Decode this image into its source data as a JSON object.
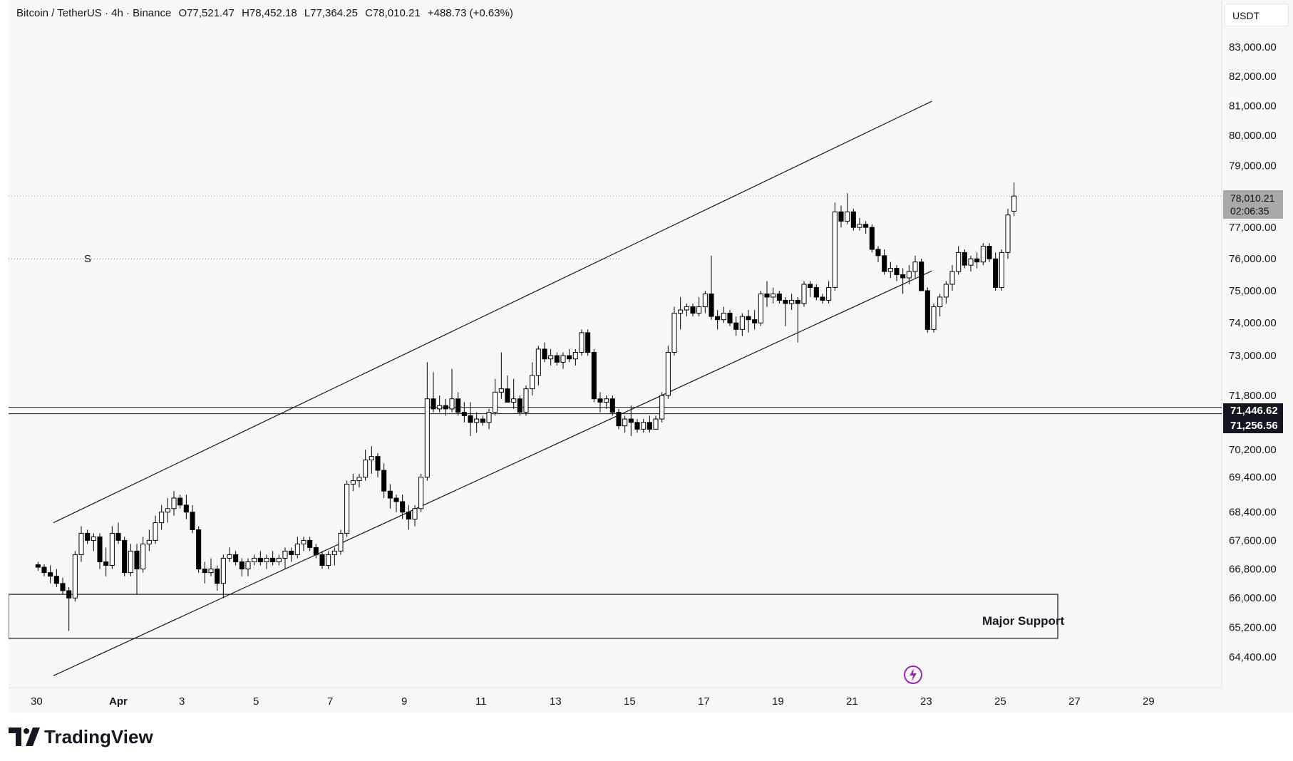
{
  "legend": {
    "symbol": "Bitcoin / TetherUS · 4h · Binance",
    "open": "O77,521.47",
    "high": "H78,452.18",
    "low": "L77,364.25",
    "close": "C78,010.21",
    "change": "+488.73 (+0.63%)"
  },
  "unit": "USDT",
  "price_tag": {
    "price": "78,010.21",
    "countdown": "02:06:35"
  },
  "level_tags": [
    "71,446.62",
    "71,256.56"
  ],
  "marker_label": "S",
  "support_label": "Major Support",
  "brand": "TradingView",
  "colors": {
    "up": "#ffffff",
    "down": "#000000",
    "line": "#131722",
    "bg": "#f7f7f7",
    "tag": "#a9a9a9",
    "accent": "#9c27b0"
  },
  "chart_data": {
    "type": "candlestick",
    "x_tick_labels": [
      "30",
      "Apr",
      "3",
      "5",
      "7",
      "9",
      "11",
      "13",
      "15",
      "17",
      "19",
      "21",
      "23",
      "25",
      "27",
      "29"
    ],
    "y_tick_labels": [
      {
        "value": 83000,
        "label": "83,000.00"
      },
      {
        "value": 82000,
        "label": "82,000.00"
      },
      {
        "value": 81000,
        "label": "81,000.00"
      },
      {
        "value": 80000,
        "label": "80,000.00"
      },
      {
        "value": 79000,
        "label": "79,000.00"
      },
      {
        "value": 77000,
        "label": "77,000.00"
      },
      {
        "value": 76000,
        "label": "76,000.00"
      },
      {
        "value": 75000,
        "label": "75,000.00"
      },
      {
        "value": 74000,
        "label": "74,000.00"
      },
      {
        "value": 73000,
        "label": "73,000.00"
      },
      {
        "value": 71800,
        "label": "71,800.00"
      },
      {
        "value": 70200,
        "label": "70,200.00"
      },
      {
        "value": 69400,
        "label": "69,400.00"
      },
      {
        "value": 68400,
        "label": "68,400.00"
      },
      {
        "value": 67600,
        "label": "67,600.00"
      },
      {
        "value": 66800,
        "label": "66,800.00"
      },
      {
        "value": 66000,
        "label": "66,000.00"
      },
      {
        "value": 65200,
        "label": "65,200.00"
      },
      {
        "value": 64400,
        "label": "64,400.00"
      }
    ],
    "channel_upper": [
      [
        0.5,
        68100
      ],
      [
        24.2,
        81150
      ]
    ],
    "channel_lower": [
      [
        0.5,
        63900
      ],
      [
        24.2,
        75620
      ]
    ],
    "horizontal_levels": [
      71446.62,
      71256.56
    ],
    "last_price": 78010.21,
    "marker_level": 76000,
    "support_zone": [
      64900,
      66100
    ],
    "candles": [
      [
        66920,
        67000,
        66750,
        66850
      ],
      [
        66850,
        66930,
        66600,
        66700
      ],
      [
        66700,
        66900,
        66400,
        66600
      ],
      [
        66600,
        66800,
        66300,
        66400
      ],
      [
        66400,
        66560,
        66100,
        66200
      ],
      [
        66200,
        66300,
        65100,
        66000
      ],
      [
        66000,
        67300,
        65900,
        67200
      ],
      [
        67200,
        68000,
        67000,
        67800
      ],
      [
        67800,
        67900,
        67500,
        67600
      ],
      [
        67600,
        67800,
        67300,
        67700
      ],
      [
        67700,
        67800,
        66800,
        67000
      ],
      [
        67000,
        67400,
        66600,
        66900
      ],
      [
        66900,
        68000,
        66800,
        67800
      ],
      [
        67800,
        68100,
        67500,
        67600
      ],
      [
        67600,
        67700,
        66600,
        66700
      ],
      [
        66700,
        67500,
        66600,
        67300
      ],
      [
        67300,
        67500,
        66100,
        66800
      ],
      [
        66800,
        67700,
        66700,
        67500
      ],
      [
        67500,
        67900,
        67300,
        67600
      ],
      [
        67600,
        68300,
        67500,
        68100
      ],
      [
        68100,
        68600,
        67900,
        68400
      ],
      [
        68400,
        68800,
        68100,
        68500
      ],
      [
        68500,
        69000,
        68300,
        68800
      ],
      [
        68800,
        68900,
        68500,
        68600
      ],
      [
        68600,
        68900,
        68200,
        68400
      ],
      [
        68400,
        68600,
        67800,
        67900
      ],
      [
        67900,
        68000,
        66700,
        66800
      ],
      [
        66800,
        67000,
        66400,
        66700
      ],
      [
        66700,
        67100,
        66600,
        66800
      ],
      [
        66800,
        66900,
        66200,
        66400
      ],
      [
        66400,
        67200,
        66000,
        67100
      ],
      [
        67100,
        67400,
        67000,
        67200
      ],
      [
        67200,
        67300,
        66900,
        67000
      ],
      [
        67000,
        67100,
        66600,
        66800
      ],
      [
        66800,
        67100,
        66600,
        67000
      ],
      [
        67000,
        67200,
        66900,
        67100
      ],
      [
        67100,
        67300,
        66900,
        67000
      ],
      [
        67000,
        67200,
        66800,
        67100
      ],
      [
        67100,
        67300,
        66900,
        67000
      ],
      [
        67000,
        67200,
        66900,
        67100
      ],
      [
        67100,
        67400,
        66800,
        67300
      ],
      [
        67300,
        67400,
        67000,
        67200
      ],
      [
        67200,
        67700,
        67100,
        67500
      ],
      [
        67500,
        67700,
        67300,
        67600
      ],
      [
        67600,
        67700,
        67300,
        67400
      ],
      [
        67400,
        67500,
        67100,
        67200
      ],
      [
        67200,
        67300,
        66800,
        66900
      ],
      [
        66900,
        67300,
        66800,
        67200
      ],
      [
        67200,
        67400,
        66900,
        67300
      ],
      [
        67300,
        67900,
        67200,
        67800
      ],
      [
        67800,
        69300,
        67700,
        69200
      ],
      [
        69200,
        69500,
        69000,
        69300
      ],
      [
        69300,
        69500,
        69100,
        69400
      ],
      [
        69400,
        70200,
        69300,
        69900
      ],
      [
        69900,
        70300,
        69500,
        70000
      ],
      [
        70000,
        70100,
        69400,
        69600
      ],
      [
        69600,
        69800,
        68800,
        69000
      ],
      [
        69000,
        69200,
        68500,
        68800
      ],
      [
        68800,
        68900,
        68400,
        68700
      ],
      [
        68700,
        68900,
        68200,
        68400
      ],
      [
        68400,
        68600,
        67900,
        68200
      ],
      [
        68200,
        68600,
        68000,
        68500
      ],
      [
        68500,
        69500,
        68400,
        69400
      ],
      [
        69400,
        72800,
        69300,
        71700
      ],
      [
        71700,
        72500,
        71300,
        71400
      ],
      [
        71400,
        71800,
        71300,
        71500
      ],
      [
        71500,
        71700,
        71200,
        71400
      ],
      [
        71400,
        72600,
        71300,
        71700
      ],
      [
        71700,
        71900,
        71200,
        71300
      ],
      [
        71300,
        71600,
        71000,
        71200
      ],
      [
        71200,
        71600,
        70600,
        71000
      ],
      [
        71000,
        71300,
        70700,
        71100
      ],
      [
        71100,
        71200,
        70900,
        71000
      ],
      [
        71000,
        71400,
        70800,
        71300
      ],
      [
        71300,
        72300,
        71200,
        71900
      ],
      [
        71900,
        73100,
        71700,
        72000
      ],
      [
        72000,
        72400,
        71700,
        71600
      ],
      [
        71600,
        72300,
        71400,
        71700
      ],
      [
        71700,
        71800,
        71200,
        71300
      ],
      [
        71300,
        72100,
        71200,
        72000
      ],
      [
        72000,
        72800,
        71800,
        72400
      ],
      [
        72400,
        73300,
        72100,
        73200
      ],
      [
        73200,
        73400,
        72800,
        72900
      ],
      [
        72900,
        73200,
        72700,
        73000
      ],
      [
        73000,
        73100,
        72700,
        72800
      ],
      [
        72800,
        73100,
        72600,
        73000
      ],
      [
        73000,
        73200,
        72800,
        72900
      ],
      [
        72900,
        73200,
        72700,
        73100
      ],
      [
        73100,
        73800,
        73000,
        73700
      ],
      [
        73700,
        73800,
        73000,
        73100
      ],
      [
        73100,
        73200,
        71600,
        71700
      ],
      [
        71700,
        71900,
        71300,
        71600
      ],
      [
        71600,
        71800,
        71400,
        71700
      ],
      [
        71700,
        71800,
        71200,
        71300
      ],
      [
        71300,
        71400,
        70800,
        70900
      ],
      [
        70900,
        71200,
        70700,
        71100
      ],
      [
        71100,
        71500,
        70600,
        71000
      ],
      [
        71000,
        71100,
        70700,
        70800
      ],
      [
        70800,
        71100,
        70700,
        71000
      ],
      [
        71000,
        71200,
        70700,
        70800
      ],
      [
        70800,
        71200,
        70800,
        71100
      ],
      [
        71100,
        71900,
        71000,
        71800
      ],
      [
        71800,
        73300,
        71700,
        73100
      ],
      [
        73100,
        74500,
        73000,
        74300
      ],
      [
        74300,
        74800,
        73800,
        74400
      ],
      [
        74400,
        74600,
        74200,
        74500
      ],
      [
        74500,
        74600,
        74200,
        74300
      ],
      [
        74300,
        74800,
        74200,
        74500
      ],
      [
        74500,
        75000,
        74300,
        74900
      ],
      [
        74900,
        76100,
        74100,
        74200
      ],
      [
        74200,
        74400,
        73800,
        74100
      ],
      [
        74100,
        74500,
        74000,
        74300
      ],
      [
        74300,
        74400,
        73900,
        74000
      ],
      [
        74000,
        74200,
        73600,
        73800
      ],
      [
        73800,
        74300,
        73600,
        74200
      ],
      [
        74200,
        74400,
        73700,
        74100
      ],
      [
        74100,
        74400,
        73800,
        74000
      ],
      [
        74000,
        75000,
        73900,
        74900
      ],
      [
        74900,
        75300,
        74500,
        74800
      ],
      [
        74800,
        75100,
        74600,
        74900
      ],
      [
        74900,
        75000,
        74600,
        74700
      ],
      [
        74700,
        74800,
        73900,
        74600
      ],
      [
        74600,
        74900,
        74400,
        74700
      ],
      [
        74700,
        74800,
        73400,
        74600
      ],
      [
        74600,
        75300,
        74500,
        75200
      ],
      [
        75200,
        75300,
        74800,
        75100
      ],
      [
        75100,
        75200,
        74700,
        74800
      ],
      [
        74800,
        74900,
        74600,
        74700
      ],
      [
        74700,
        75300,
        74600,
        75100
      ],
      [
        75100,
        77800,
        75000,
        77500
      ],
      [
        77500,
        77700,
        77000,
        77200
      ],
      [
        77200,
        78100,
        77100,
        77500
      ],
      [
        77500,
        77600,
        76900,
        77000
      ],
      [
        77000,
        77300,
        76900,
        77100
      ],
      [
        77100,
        77200,
        76800,
        77000
      ],
      [
        77000,
        77100,
        76200,
        76300
      ],
      [
        76300,
        76400,
        75900,
        76100
      ],
      [
        76100,
        76300,
        75500,
        75600
      ],
      [
        75600,
        75900,
        75400,
        75700
      ],
      [
        75700,
        75800,
        75300,
        75500
      ],
      [
        75500,
        75700,
        74900,
        75400
      ],
      [
        75400,
        75800,
        75200,
        75600
      ],
      [
        75600,
        76100,
        75400,
        75900
      ],
      [
        75900,
        76000,
        75100,
        75000
      ],
      [
        75000,
        75100,
        73700,
        73800
      ],
      [
        73800,
        74600,
        73700,
        74500
      ],
      [
        74500,
        74900,
        74200,
        74800
      ],
      [
        74800,
        75300,
        74600,
        75200
      ],
      [
        75200,
        75800,
        75000,
        75600
      ],
      [
        75600,
        76400,
        75500,
        76200
      ],
      [
        76200,
        76300,
        75700,
        75800
      ],
      [
        75800,
        76100,
        75600,
        76000
      ],
      [
        76000,
        76200,
        75700,
        75900
      ],
      [
        75900,
        76500,
        75800,
        76400
      ],
      [
        76400,
        76500,
        75900,
        76000
      ],
      [
        76000,
        76200,
        75000,
        75100
      ],
      [
        75100,
        76300,
        75000,
        76200
      ],
      [
        76200,
        77600,
        76000,
        77400
      ],
      [
        77521.47,
        78452.18,
        77364.25,
        78010.21
      ]
    ]
  }
}
